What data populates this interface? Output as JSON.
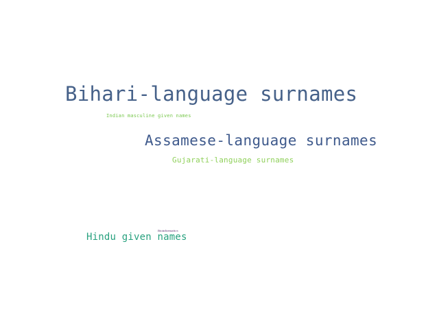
{
  "colors": {
    "background": "#ffffff"
  },
  "words": [
    {
      "id": "bihari",
      "text": "Bihari-language surnames",
      "color": "#466189"
    },
    {
      "id": "indian",
      "text": "Indian masculine given names",
      "color": "#7ac84f"
    },
    {
      "id": "assamese",
      "text": "Assamese-language surnames",
      "color": "#3f5a8c"
    },
    {
      "id": "gujarati",
      "text": "Gujarati-language surnames",
      "color": "#8fd05a"
    },
    {
      "id": "hindu",
      "text": "Hindu given names",
      "color": "#27a17e"
    },
    {
      "id": "bioinf",
      "text": "Bioinformatics",
      "color": "#5a2d6e"
    }
  ]
}
